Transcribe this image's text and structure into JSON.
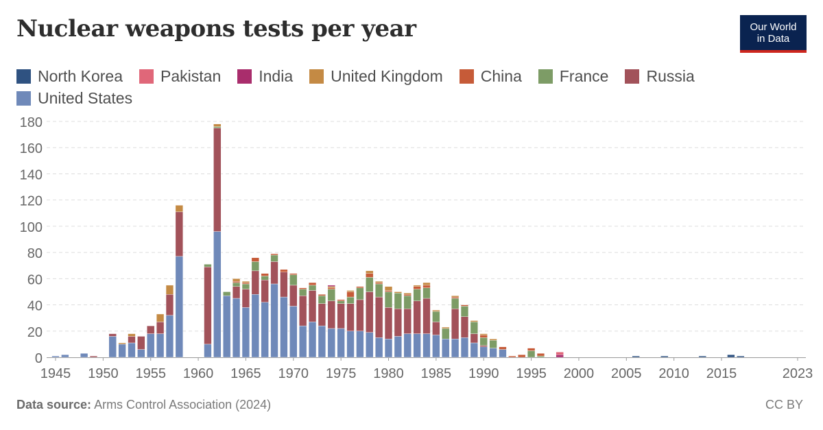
{
  "header": {
    "title": "Nuclear weapons tests per year",
    "logo_line1": "Our World",
    "logo_line2": "in Data"
  },
  "footer": {
    "source_label": "Data source:",
    "source_text": "Arms Control Association (2024)",
    "license": "CC BY"
  },
  "colors": {
    "logo_bg": "#0a2350",
    "logo_accent": "#ce261e",
    "grid": "#dddddd"
  },
  "chart_data": {
    "type": "bar",
    "stacked": true,
    "title": "Nuclear weapons tests per year",
    "xlim": [
      1945,
      2023
    ],
    "x_ticks": [
      1945,
      1950,
      1955,
      1960,
      1965,
      1970,
      1975,
      1980,
      1985,
      1990,
      1995,
      2000,
      2005,
      2010,
      2015,
      2023
    ],
    "ylim": [
      0,
      180
    ],
    "y_ticks": [
      0,
      20,
      40,
      60,
      80,
      100,
      120,
      140,
      160,
      180
    ],
    "grid": "horizontal dashed",
    "legend_position": "top",
    "x": [
      1945,
      1946,
      1948,
      1949,
      1951,
      1952,
      1953,
      1954,
      1955,
      1956,
      1957,
      1958,
      1961,
      1962,
      1963,
      1964,
      1965,
      1966,
      1967,
      1968,
      1969,
      1970,
      1971,
      1972,
      1973,
      1974,
      1975,
      1976,
      1977,
      1978,
      1979,
      1980,
      1981,
      1982,
      1983,
      1984,
      1985,
      1986,
      1987,
      1988,
      1989,
      1990,
      1991,
      1992,
      1993,
      1994,
      1995,
      1996,
      1998,
      2006,
      2009,
      2013,
      2016,
      2017
    ],
    "series": [
      {
        "name": "United States",
        "color": "#6f89b9",
        "values": [
          1,
          2,
          3,
          0,
          16,
          10,
          11,
          6,
          18,
          18,
          32,
          77,
          10,
          96,
          47,
          45,
          38,
          48,
          42,
          56,
          46,
          39,
          24,
          27,
          24,
          22,
          22,
          20,
          20,
          19,
          15,
          14,
          16,
          18,
          18,
          18,
          17,
          14,
          14,
          15,
          11,
          8,
          7,
          6,
          0,
          0,
          0,
          0,
          0,
          0,
          0,
          0,
          0,
          0
        ]
      },
      {
        "name": "Russia",
        "color": "#a2525a",
        "values": [
          0,
          0,
          0,
          1,
          2,
          0,
          5,
          10,
          6,
          9,
          16,
          34,
          59,
          79,
          0,
          9,
          14,
          18,
          17,
          17,
          19,
          16,
          23,
          24,
          17,
          21,
          19,
          21,
          24,
          31,
          31,
          24,
          21,
          19,
          25,
          27,
          10,
          0,
          23,
          16,
          7,
          1,
          0,
          0,
          0,
          0,
          0,
          0,
          0,
          0,
          0,
          0,
          0,
          0
        ]
      },
      {
        "name": "France",
        "color": "#7d9c66",
        "values": [
          0,
          0,
          0,
          0,
          0,
          0,
          0,
          0,
          0,
          0,
          0,
          0,
          2,
          1,
          3,
          3,
          4,
          7,
          3,
          5,
          0,
          8,
          5,
          4,
          6,
          9,
          2,
          5,
          9,
          11,
          10,
          12,
          12,
          10,
          9,
          8,
          8,
          8,
          8,
          8,
          9,
          6,
          6,
          0,
          0,
          0,
          5,
          1,
          0,
          0,
          0,
          0,
          0,
          0
        ]
      },
      {
        "name": "China",
        "color": "#c65b38",
        "values": [
          0,
          0,
          0,
          0,
          0,
          0,
          0,
          0,
          0,
          0,
          0,
          0,
          0,
          0,
          0,
          1,
          1,
          3,
          2,
          1,
          2,
          1,
          1,
          2,
          1,
          1,
          1,
          4,
          1,
          3,
          1,
          1,
          0,
          1,
          2,
          2,
          0,
          0,
          1,
          1,
          0,
          2,
          0,
          2,
          1,
          2,
          2,
          2,
          0,
          0,
          0,
          0,
          0,
          0
        ]
      },
      {
        "name": "United Kingdom",
        "color": "#c48a44",
        "values": [
          0,
          0,
          0,
          0,
          0,
          1,
          2,
          0,
          0,
          6,
          7,
          5,
          0,
          2,
          0,
          2,
          1,
          0,
          0,
          0,
          0,
          0,
          0,
          0,
          0,
          1,
          0,
          1,
          0,
          2,
          1,
          3,
          1,
          1,
          1,
          2,
          1,
          1,
          1,
          0,
          1,
          1,
          1,
          0,
          0,
          0,
          0,
          0,
          0,
          0,
          0,
          0,
          0,
          0
        ]
      },
      {
        "name": "India",
        "color": "#a92d6c",
        "values": [
          0,
          0,
          0,
          0,
          0,
          0,
          0,
          0,
          0,
          0,
          0,
          0,
          0,
          0,
          0,
          0,
          0,
          0,
          0,
          0,
          0,
          0,
          0,
          0,
          0,
          1,
          0,
          0,
          0,
          0,
          0,
          0,
          0,
          0,
          0,
          0,
          0,
          0,
          0,
          0,
          0,
          0,
          0,
          0,
          0,
          0,
          0,
          0,
          2,
          0,
          0,
          0,
          0,
          0
        ]
      },
      {
        "name": "Pakistan",
        "color": "#e06779",
        "values": [
          0,
          0,
          0,
          0,
          0,
          0,
          0,
          0,
          0,
          0,
          0,
          0,
          0,
          0,
          0,
          0,
          0,
          0,
          0,
          0,
          0,
          0,
          0,
          0,
          0,
          0,
          0,
          0,
          0,
          0,
          0,
          0,
          0,
          0,
          0,
          0,
          0,
          0,
          0,
          0,
          0,
          0,
          0,
          0,
          0,
          0,
          0,
          0,
          2,
          0,
          0,
          0,
          0,
          0
        ]
      },
      {
        "name": "North Korea",
        "color": "#2f5281",
        "values": [
          0,
          0,
          0,
          0,
          0,
          0,
          0,
          0,
          0,
          0,
          0,
          0,
          0,
          0,
          0,
          0,
          0,
          0,
          0,
          0,
          0,
          0,
          0,
          0,
          0,
          0,
          0,
          0,
          0,
          0,
          0,
          0,
          0,
          0,
          0,
          0,
          0,
          0,
          0,
          0,
          0,
          0,
          0,
          0,
          0,
          0,
          0,
          0,
          0,
          1,
          1,
          1,
          2,
          1
        ]
      }
    ]
  },
  "legend_order": [
    "North Korea",
    "Pakistan",
    "India",
    "United Kingdom",
    "China",
    "France",
    "Russia",
    "United States"
  ]
}
